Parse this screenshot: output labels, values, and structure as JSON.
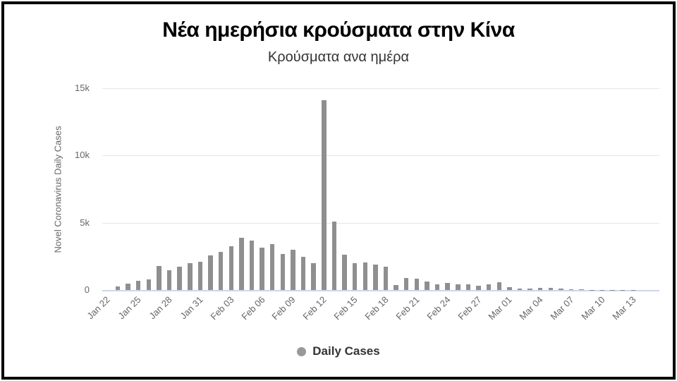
{
  "chart_data": {
    "type": "bar",
    "title": "Νέα ημερήσια κρούσματα στην Κίνα",
    "subtitle": "Κρούσματα ανα ημέρα",
    "ylabel": "Novel Coronavirus Daily Cases",
    "xlabel": "",
    "ylim": [
      0,
      15000
    ],
    "ytick_values": [
      0,
      5000,
      10000,
      15000
    ],
    "ytick_labels": [
      "0",
      "5k",
      "10k",
      "15k"
    ],
    "xtick_every": 3,
    "grid": true,
    "legend_position": "bottom-center",
    "legend": [
      "Daily Cases"
    ],
    "categories": [
      "Jan 22",
      "Jan 23",
      "Jan 24",
      "Jan 25",
      "Jan 26",
      "Jan 27",
      "Jan 28",
      "Jan 29",
      "Jan 30",
      "Jan 31",
      "Feb 01",
      "Feb 02",
      "Feb 03",
      "Feb 04",
      "Feb 05",
      "Feb 06",
      "Feb 07",
      "Feb 08",
      "Feb 09",
      "Feb 10",
      "Feb 11",
      "Feb 12",
      "Feb 13",
      "Feb 14",
      "Feb 15",
      "Feb 16",
      "Feb 17",
      "Feb 18",
      "Feb 19",
      "Feb 20",
      "Feb 21",
      "Feb 22",
      "Feb 23",
      "Feb 24",
      "Feb 25",
      "Feb 26",
      "Feb 27",
      "Feb 28",
      "Feb 29",
      "Mar 01",
      "Mar 02",
      "Mar 03",
      "Mar 04",
      "Mar 05",
      "Mar 06",
      "Mar 07",
      "Mar 08",
      "Mar 09",
      "Mar 10",
      "Mar 11",
      "Mar 12",
      "Mar 13"
    ],
    "values": [
      0,
      259,
      457,
      688,
      769,
      1771,
      1459,
      1737,
      1982,
      2102,
      2590,
      2829,
      3235,
      3887,
      3694,
      3143,
      3385,
      2652,
      2973,
      2467,
      2015,
      14108,
      5090,
      2641,
      2008,
      2048,
      1888,
      1749,
      394,
      889,
      823,
      648,
      409,
      508,
      406,
      433,
      327,
      427,
      573,
      202,
      125,
      119,
      139,
      143,
      99,
      44,
      40,
      19,
      24,
      15,
      8,
      11
    ],
    "series_name": "Daily Cases",
    "colors": {
      "bar": "#8f8f8f",
      "gridline": "#e6e6e6",
      "axis_line": "#ccd6eb",
      "tick_label": "#666666",
      "axis_title": "#666666",
      "title": "#000000",
      "subtitle": "#333333",
      "legend_text": "#333333",
      "legend_marker": "#999999",
      "frame": "#000000",
      "background": "#ffffff"
    }
  }
}
